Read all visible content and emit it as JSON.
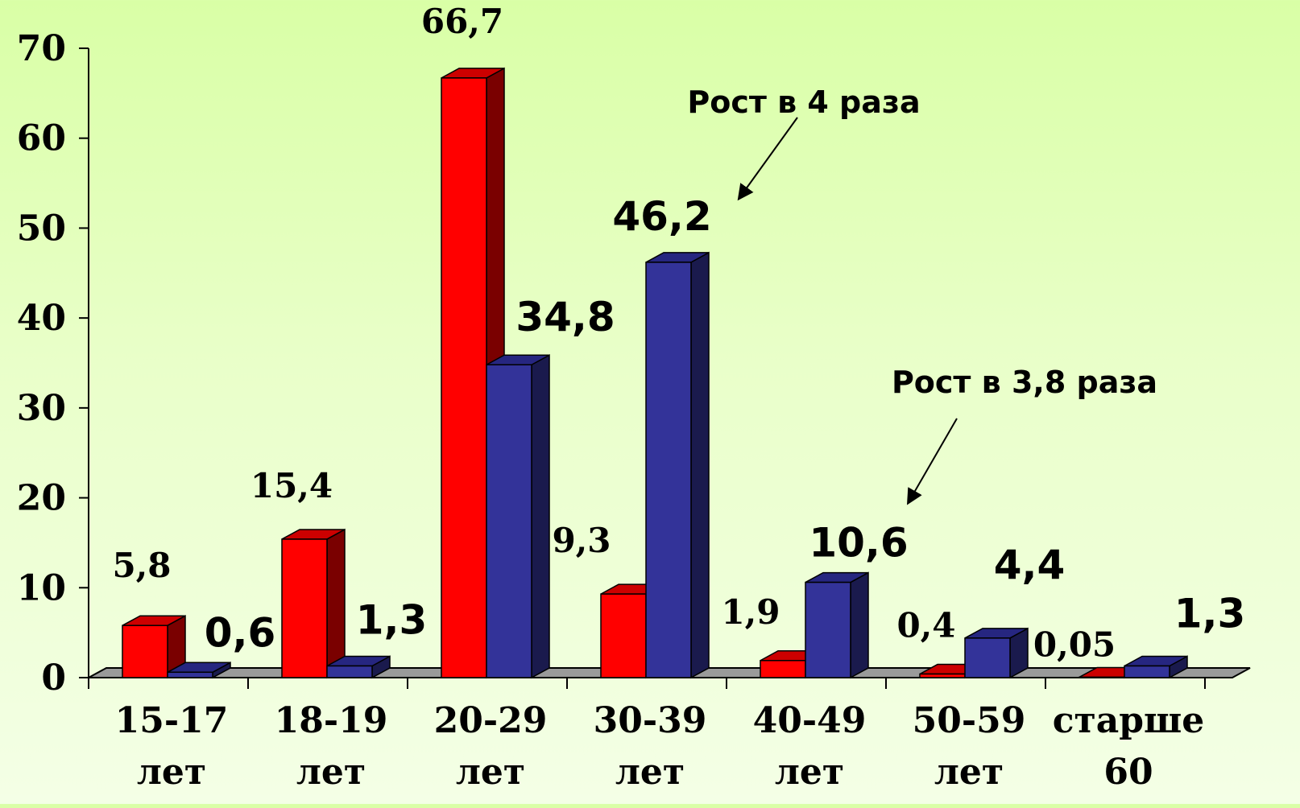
{
  "chart_data": {
    "type": "bar",
    "categories": [
      [
        "15-17",
        "лет"
      ],
      [
        "18-19",
        "лет"
      ],
      [
        "20-29",
        "лет"
      ],
      [
        "30-39",
        "лет"
      ],
      [
        "40-49",
        "лет"
      ],
      [
        "50-59",
        "лет"
      ],
      [
        "старше",
        "60"
      ]
    ],
    "series": [
      {
        "color": "#ff0000",
        "side_color": "#7a0000",
        "top_color": "#cc0000",
        "values": [
          5.8,
          15.4,
          66.7,
          9.3,
          1.9,
          0.4,
          0.05
        ],
        "labels": [
          "5,8",
          "15,4",
          "66,7",
          "9,3",
          "1,9",
          "0,4",
          "0,05"
        ]
      },
      {
        "color": "#333399",
        "side_color": "#1a1a4d",
        "top_color": "#262680",
        "values": [
          0.6,
          1.3,
          34.8,
          46.2,
          10.6,
          4.4,
          1.3
        ],
        "labels": [
          "0,6",
          "1,3",
          "34,8",
          "46,2",
          "10,6",
          "4,4",
          "1,3"
        ]
      }
    ],
    "y_ticks": [
      "0",
      "10",
      "20",
      "30",
      "40",
      "50",
      "60",
      "70"
    ],
    "ylim": [
      0,
      70
    ],
    "grid": false,
    "legend": "none",
    "three_d": true,
    "annotations": [
      {
        "text": "Рост в 4 раза",
        "points_to": "30-39 series 2"
      },
      {
        "text": "Рост в 3,8 раза",
        "points_to": "40-49 series 2"
      }
    ]
  }
}
